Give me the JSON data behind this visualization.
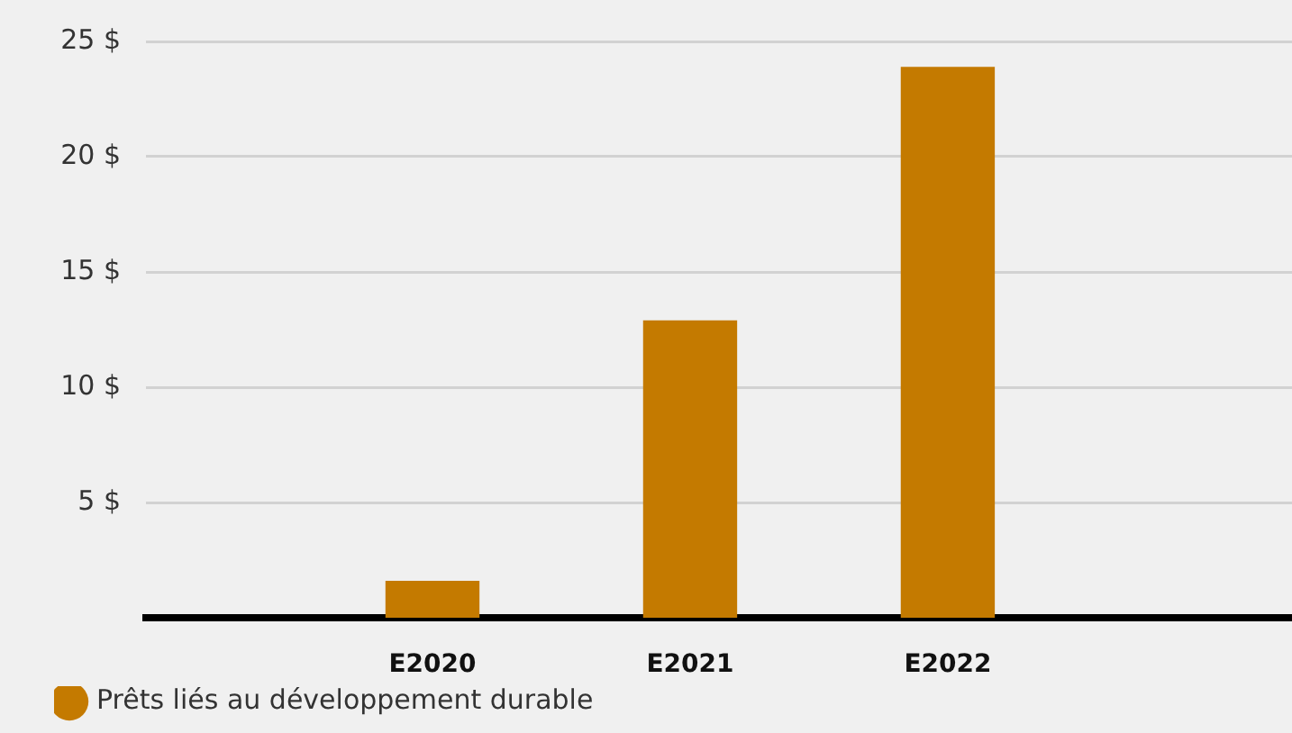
{
  "chart_data": {
    "type": "bar",
    "categories": [
      "E2020",
      "E2021",
      "E2022"
    ],
    "series": [
      {
        "name": "Prêts liés au développement durable",
        "color": "#c47a00",
        "values": [
          1.6,
          12.9,
          23.9
        ]
      }
    ],
    "ylim": [
      0,
      25
    ],
    "yticks": [
      {
        "value": 5,
        "label": "5 $"
      },
      {
        "value": 10,
        "label": "10 $"
      },
      {
        "value": 15,
        "label": "15 $"
      },
      {
        "value": 20,
        "label": "20 $"
      },
      {
        "value": 25,
        "label": "25 $"
      }
    ],
    "grid": "y",
    "legend": "bottom left"
  }
}
